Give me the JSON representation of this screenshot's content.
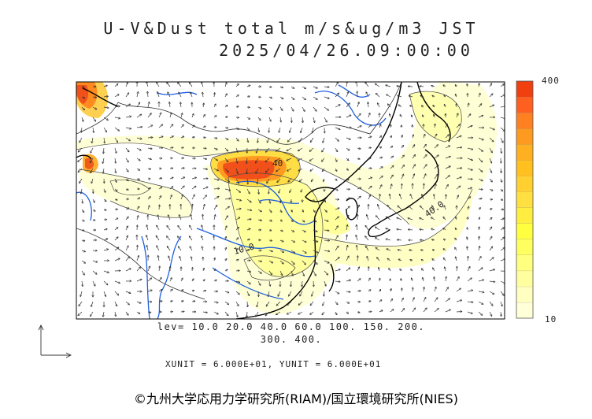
{
  "header": {
    "title_line1": "U-V&Dust total m/s&ug/m3 JST",
    "title_line2": "2025/04/26.09:00:00"
  },
  "map": {
    "contour_labels": [
      "40",
      "40.0",
      "10.0"
    ],
    "coast_color": "#000000",
    "river_color": "#1f5fe0",
    "border_color": "#333333"
  },
  "colorbar": {
    "max_label": "400",
    "min_label": "10",
    "colors": [
      "#ffffd8",
      "#ffffc0",
      "#ffffa0",
      "#ffff80",
      "#ffff60",
      "#ffff40",
      "#ffee40",
      "#ffe040",
      "#ffd030",
      "#ffc020",
      "#ffb020",
      "#ff9a20",
      "#ff8020",
      "#ff6020",
      "#f04010"
    ]
  },
  "legend": {
    "levels_line1": "lev= 10.0 20.0 40.0 60.0 100. 150. 200.",
    "levels_line2": "300. 400.",
    "units_line": "XUNIT = 6.000E+01, YUNIT = 6.000E+01"
  },
  "credit": "©九州大学応用力学研究所(RIAM)/国立環境研究所(NIES)"
}
